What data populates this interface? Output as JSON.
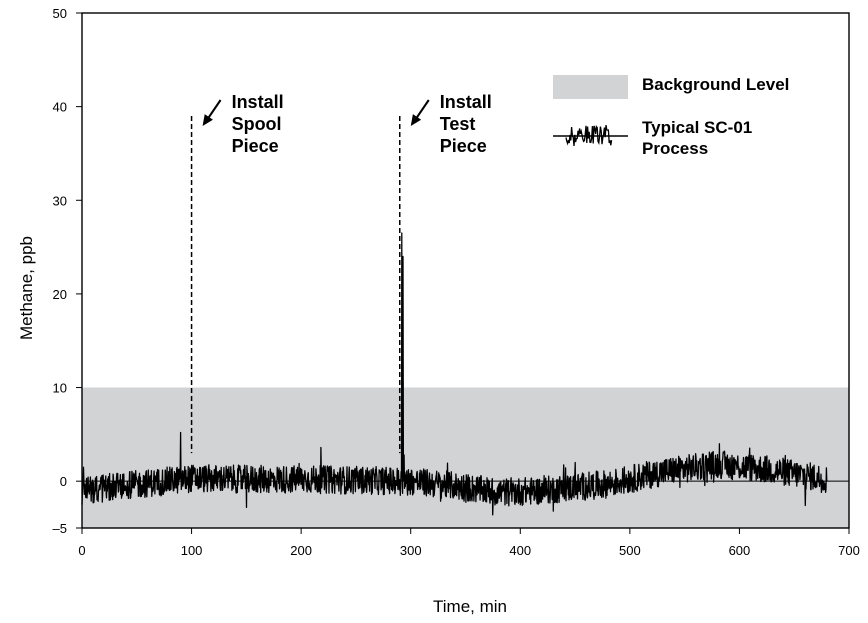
{
  "chart_data": {
    "type": "line",
    "xlabel": "Time, min",
    "ylabel": "Methane, ppb",
    "xlim": [
      0,
      700
    ],
    "ylim": [
      -5,
      50
    ],
    "x_ticks": [
      0,
      100,
      200,
      300,
      400,
      500,
      600,
      700
    ],
    "y_ticks": [
      -5,
      0,
      10,
      20,
      30,
      40,
      50
    ],
    "y_tick_labels": [
      "–5",
      "0",
      "10",
      "20",
      "30",
      "40",
      "50"
    ],
    "grid": false,
    "legend_position": "top-right",
    "colors": {
      "background_band": "#d2d3d5",
      "trace": "#000000"
    },
    "background_band": {
      "name": "Background Level",
      "y_min": -5,
      "y_max": 10
    },
    "series": [
      {
        "name": "Typical SC-01 Process",
        "x_range": [
          0,
          680
        ],
        "noise_amplitude": 1.5,
        "baseline": [
          [
            0,
            -1.0
          ],
          [
            100,
            0.3
          ],
          [
            150,
            0.2
          ],
          [
            200,
            0.2
          ],
          [
            300,
            0
          ],
          [
            340,
            -0.5
          ],
          [
            380,
            -1.2
          ],
          [
            420,
            -1.0
          ],
          [
            480,
            -0.3
          ],
          [
            530,
            1.0
          ],
          [
            580,
            1.8
          ],
          [
            630,
            1.2
          ],
          [
            680,
            0.2
          ]
        ],
        "spikes": [
          [
            90,
            5.2
          ],
          [
            150,
            -2.8
          ],
          [
            218,
            3.6
          ],
          [
            292,
            26.5
          ],
          [
            293,
            24.0
          ],
          [
            294,
            2.8
          ],
          [
            450,
            2.0
          ],
          [
            430,
            -3.2
          ],
          [
            375,
            -3.6
          ],
          [
            660,
            -2.6
          ]
        ]
      }
    ],
    "annotations": [
      {
        "x": 100,
        "label_lines": [
          "Install",
          "Spool",
          "Piece"
        ]
      },
      {
        "x": 290,
        "label_lines": [
          "Install",
          "Test",
          "Piece"
        ]
      }
    ]
  }
}
